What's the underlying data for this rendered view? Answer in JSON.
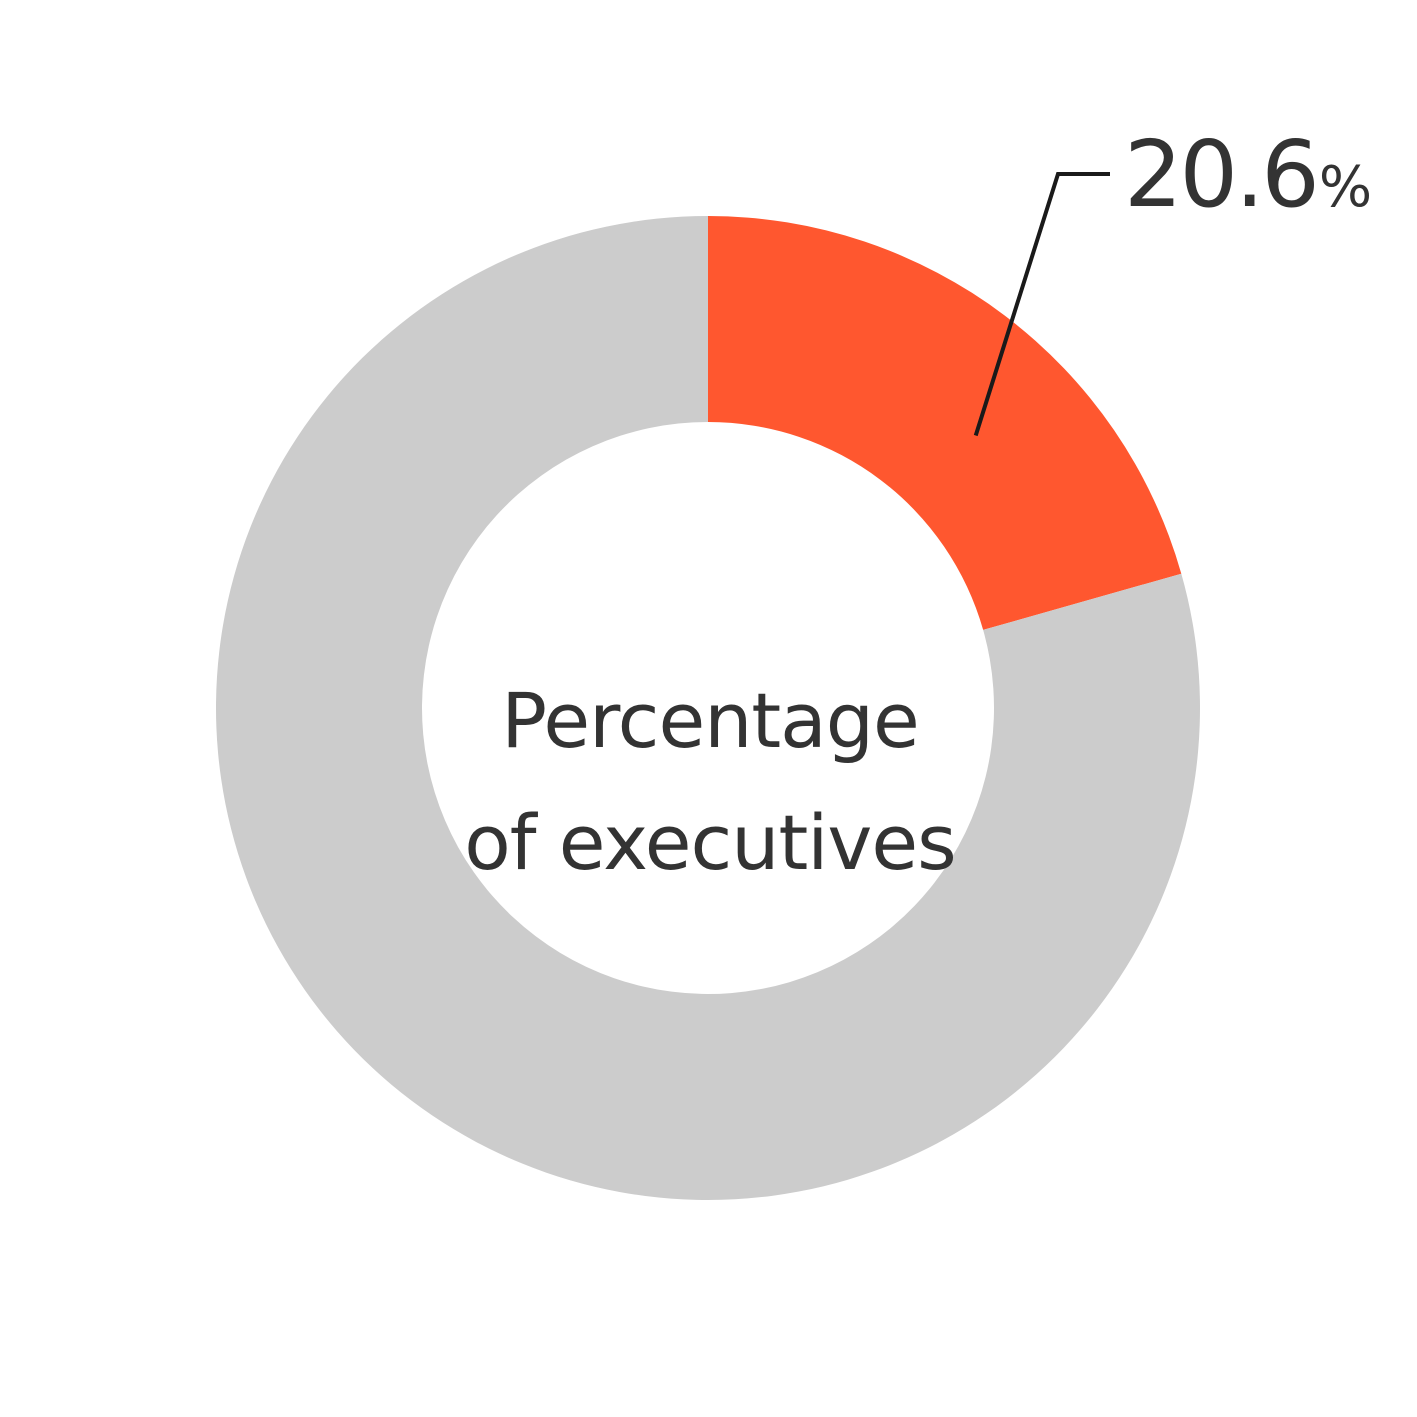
{
  "chart_data": {
    "type": "pie",
    "variant": "donut",
    "slices": [
      {
        "value": 20.6,
        "color": "#FF572F",
        "label_value": "20.6",
        "label_unit": "%"
      },
      {
        "value": 79.4,
        "color": "#CCCCCC"
      }
    ],
    "center_label": {
      "line1": "Percentage",
      "line2": "of executives"
    },
    "label_color": "#333333",
    "legend": "none"
  }
}
